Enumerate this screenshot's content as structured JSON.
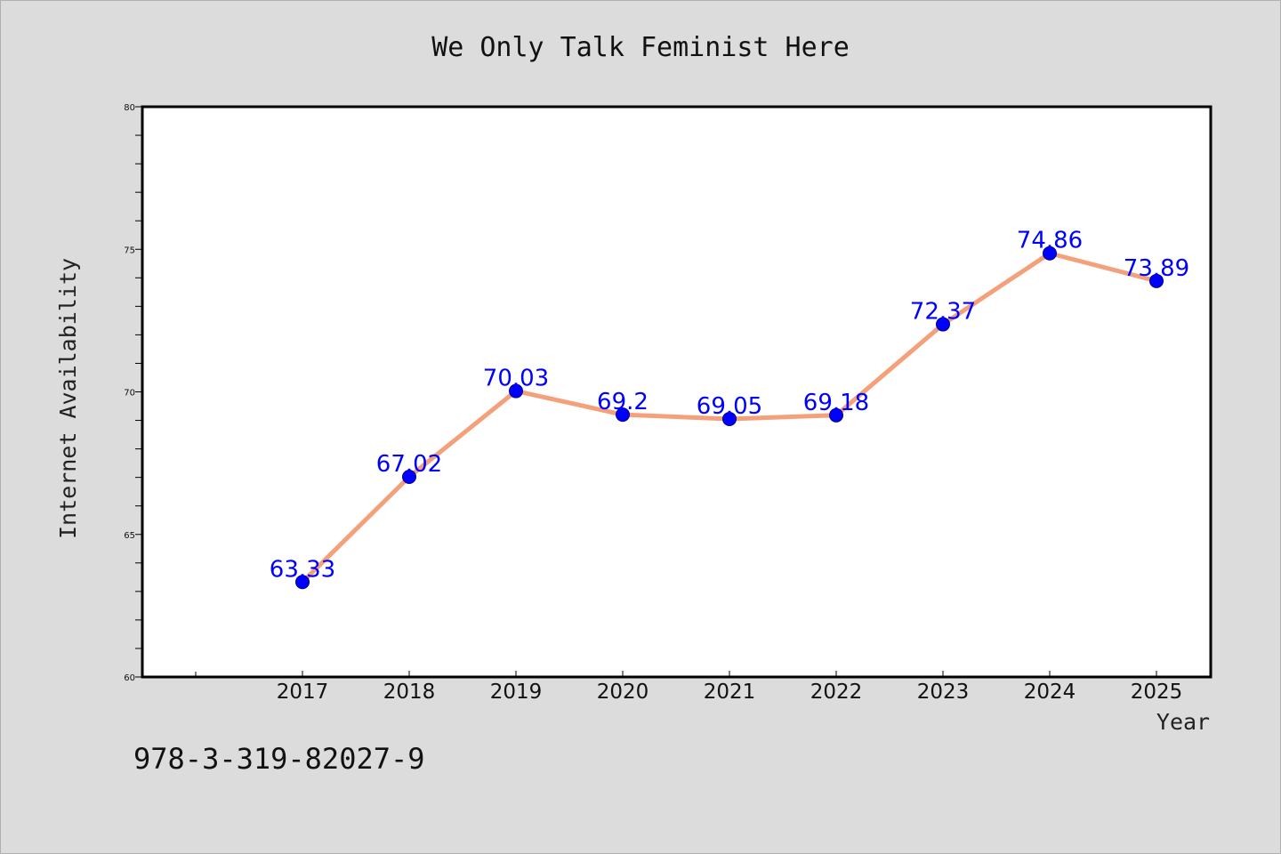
{
  "chart_data": {
    "type": "line",
    "title": "We Only Talk Feminist Here",
    "xlabel": "Year",
    "ylabel": "Internet Availability",
    "categories": [
      "2017",
      "2018",
      "2019",
      "2020",
      "2021",
      "2022",
      "2023",
      "2024",
      "2025"
    ],
    "values": [
      63.33,
      67.02,
      70.03,
      69.2,
      69.05,
      69.18,
      72.37,
      74.86,
      73.89
    ],
    "data_labels": [
      "63.33",
      "67.02",
      "70.03",
      "69.2",
      "69.05",
      "69.18",
      "72.37",
      "74.86",
      "73.89"
    ],
    "ylim": [
      60,
      80
    ],
    "yticks": [
      "60",
      "65",
      "70",
      "75",
      "80"
    ],
    "grid": false,
    "line_color": "#f4a07a",
    "marker_color": "#0000ff",
    "label_color": "#0000ff"
  },
  "footer": {
    "isbn": "978-3-319-82027-9"
  }
}
